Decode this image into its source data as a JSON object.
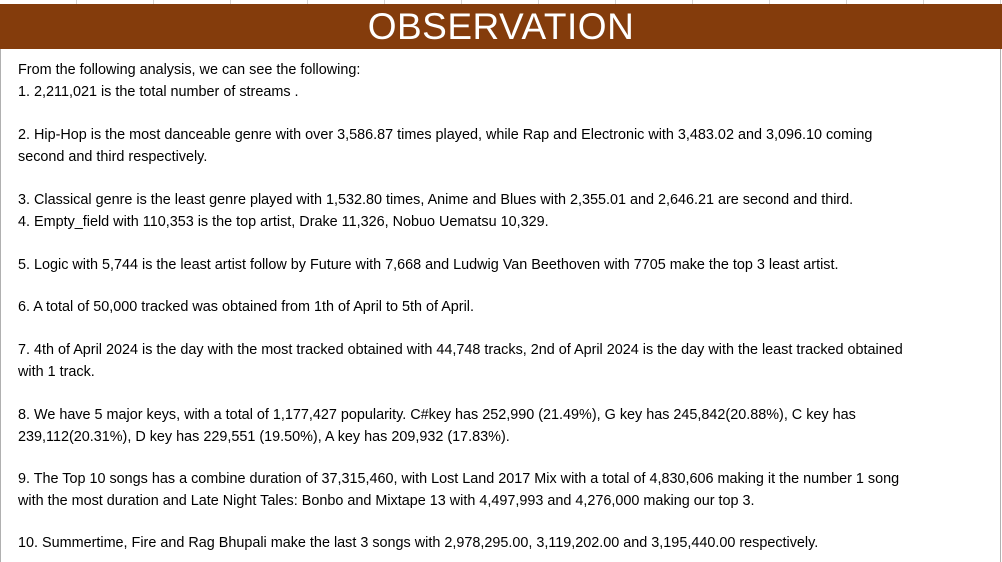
{
  "title": "OBSERVATION",
  "intro": "From the following analysis, we can see the following:",
  "points": [
    {
      "lines": [
        "1. 2,211,021 is the total number of streams ."
      ]
    },
    {
      "lines": [
        "2. Hip-Hop is the most danceable genre with over 3,586.87 times played, while Rap and Electronic with 3,483.02 and 3,096.10 coming",
        "second and third respectively."
      ]
    },
    {
      "lines": [
        "3. Classical genre is the least genre played with 1,532.80 times, Anime and Blues with 2,355.01 and 2,646.21 are second and third."
      ]
    },
    {
      "lines": [
        "4. Empty_field with 110,353 is the top artist, Drake 11,326, Nobuo Uematsu 10,329."
      ]
    },
    {
      "lines": [
        "5. Logic with 5,744 is the least artist follow by Future with 7,668 and Ludwig Van Beethoven with 7705 make the top 3 least artist."
      ]
    },
    {
      "lines": [
        "6. A total of 50,000 tracked was obtained from 1th of April to 5th of April."
      ]
    },
    {
      "lines": [
        "7. 4th of April 2024 is the day with the most tracked obtained with 44,748 tracks, 2nd of April 2024 is the day with the least tracked obtained",
        "with 1 track."
      ]
    },
    {
      "lines": [
        "8. We have 5 major keys, with a total of 1,177,427 popularity. C#key has 252,990 (21.49%), G key has 245,842(20.88%), C key has",
        "239,112(20.31%), D key has 229,551 (19.50%), A key has 209,932 (17.83%)."
      ]
    },
    {
      "lines": [
        "9. The Top 10 songs has a combine duration of  37,315,460, with Lost Land 2017 Mix with a total of 4,830,606 making it the number 1 song",
        "with the most duration and Late Night Tales: Bonbo and Mixtape 13 with 4,497,993 and 4,276,000 making our top 3."
      ]
    },
    {
      "lines": [
        "10. Summertime, Fire and Rag Bhupali make the last 3 songs with 2,978,295.00, 3,119,202.00 and 3,195,440.00  respectively."
      ]
    }
  ]
}
